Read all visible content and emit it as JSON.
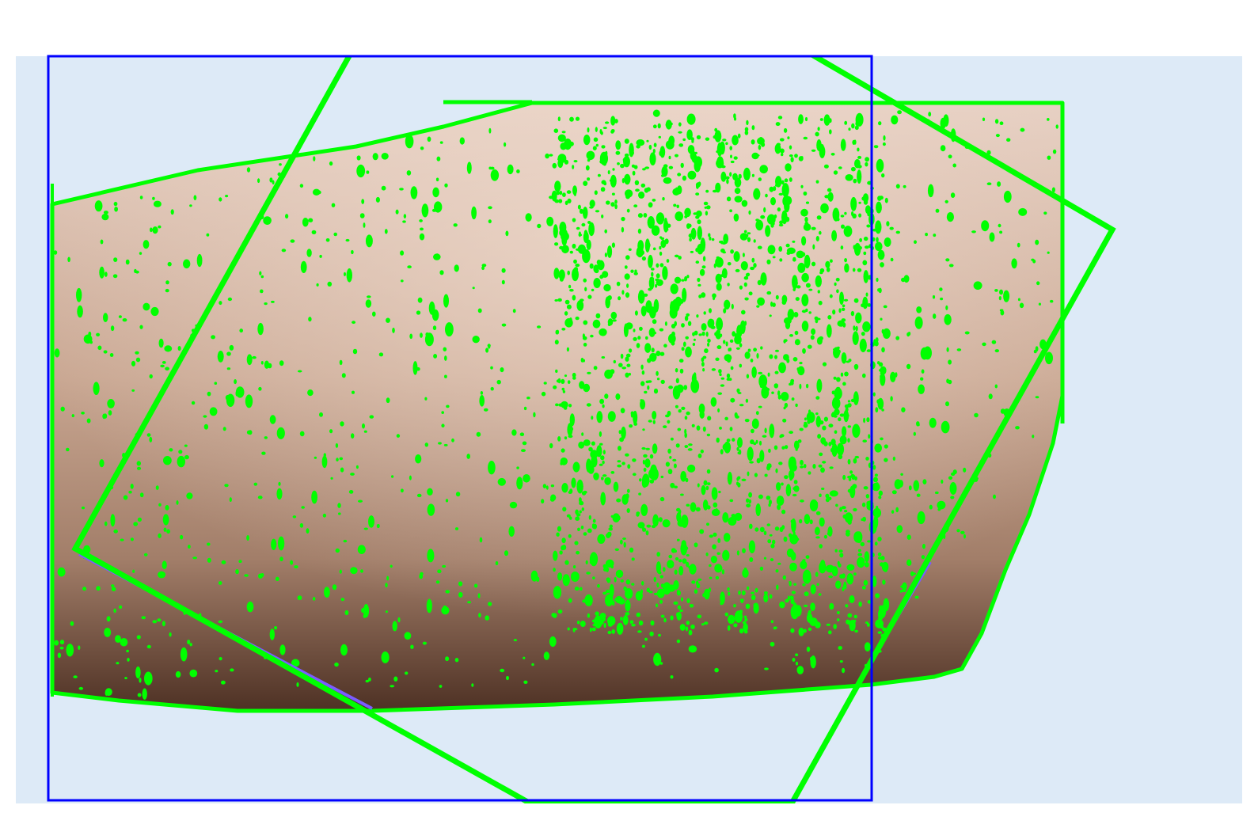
{
  "image": {
    "background_color": "#ddeaf7",
    "page_color": "#ffffff",
    "skin_colors": {
      "highlight": "#e6cfc2",
      "mid": "#c9a792",
      "dark": "#4e3124"
    },
    "overlays": {
      "contour_color": "#00ff00",
      "bounding_box_color": "#0000ff",
      "rotated_box_color": "#00ff00",
      "inner_line_color": "#7a5cff"
    }
  }
}
